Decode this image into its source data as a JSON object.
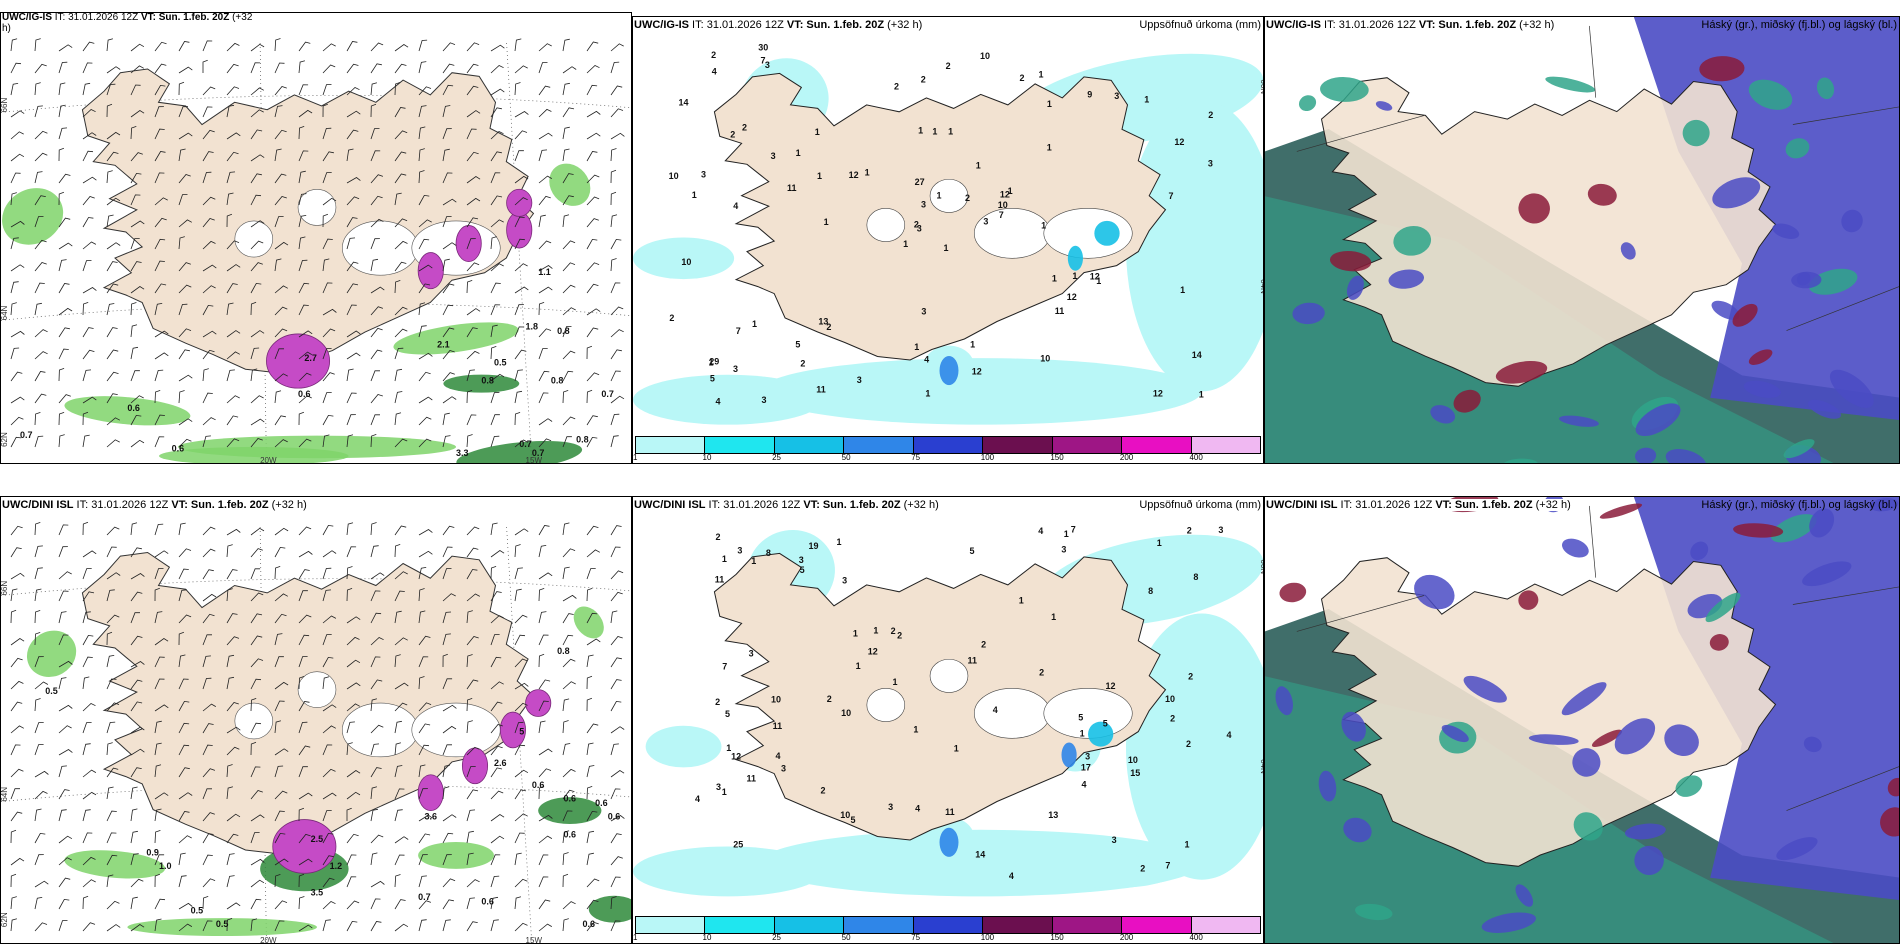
{
  "panels": {
    "top_wind": {
      "model": "UWC/IG-IS",
      "meta_pre": " IT: 31.01.2026 12Z ",
      "vt_label": "VT: Sun. 1.feb. 20Z",
      "lead": " (+32",
      "lead2": "h)",
      "lat_labels": [
        "66N",
        "64N",
        "62N"
      ],
      "lat_labels_right": [
        "66N",
        "64N"
      ],
      "lon_labels": [
        "20W",
        "15W"
      ],
      "values": [
        "0.7",
        "0.6",
        "0.6",
        "2.1",
        "0.8",
        "0.8",
        "1.8",
        "0.5",
        "0.8",
        "0.7",
        "3.3",
        "0.7",
        "0.7",
        "0.8",
        "2.7",
        "0.6",
        "1.1"
      ]
    },
    "top_precip": {
      "model": "UWC/IG-IS",
      "meta_pre": " IT: 31.01.2026 12Z ",
      "vt_label": "VT: Sun. 1.feb. 20Z",
      "lead": " (+32 h)",
      "title_right": "Uppsöfnuð úrkoma (mm)",
      "values": [
        "1",
        "2",
        "3",
        "29",
        "12",
        "2",
        "1",
        "1",
        "1",
        "3",
        "3",
        "1",
        "4",
        "2",
        "1",
        "1",
        "3",
        "1",
        "1",
        "1",
        "1",
        "5",
        "2",
        "1",
        "1",
        "1",
        "2",
        "2",
        "1",
        "1",
        "3",
        "2",
        "1",
        "3",
        "1",
        "9",
        "13",
        "12",
        "14",
        "12",
        "10",
        "12",
        "11",
        "11",
        "11",
        "10",
        "10",
        "4",
        "4",
        "7",
        "7",
        "12",
        "14",
        "12",
        "10",
        "5",
        "7",
        "2",
        "1",
        "1",
        "2",
        "1",
        "3",
        "1",
        "3",
        "30",
        "2",
        "2",
        "1",
        "2",
        "3",
        "3",
        "1",
        "1",
        "1",
        "4",
        "3",
        "10",
        "27",
        "12",
        "2",
        "3",
        "1",
        "1",
        "1",
        "7"
      ],
      "lon_labels": [
        "66N",
        "64N"
      ]
    },
    "top_cloud": {
      "model": "UWC/IG-IS",
      "meta_pre": " IT: 31.01.2026 12Z ",
      "vt_label": "VT: Sun. 1.feb. 20Z",
      "lead": " (+32 h)",
      "title_right": "Háský (gr.), miðský (fj.bl.) og lágský (bl.)"
    },
    "bot_wind": {
      "model": "UWC/DINI ISL",
      "meta_pre": " IT: 31.01.2026 12Z ",
      "vt_label": "VT: Sun. 1.feb. 20Z",
      "lead": " (+32 h)",
      "lat_labels": [
        "66N",
        "64N",
        "62N"
      ],
      "lon_labels": [
        "20W",
        "15W"
      ],
      "values": [
        "0.5",
        "0.9",
        "1.0",
        "2.5",
        "1.2",
        "3.5",
        "0.7",
        "0.6",
        "0.6",
        "0.6",
        "0.6",
        "0.6",
        "0.5",
        "0.5",
        "0.6",
        "0.6",
        "3.6",
        "5",
        "2.6",
        "0.8"
      ]
    },
    "bot_precip": {
      "model": "UWC/DINI ISL",
      "meta_pre": " IT: 31.01.2026 12Z ",
      "vt_label": "VT: Sun. 1.feb. 20Z",
      "lead": " (+32 h)",
      "title_right": "Uppsöfnuð úrkoma (mm)",
      "values": [
        "1",
        "2",
        "25",
        "19",
        "2",
        "3",
        "1",
        "3",
        "1",
        "4",
        "11",
        "2",
        "1",
        "1",
        "3",
        "2",
        "1",
        "4",
        "2",
        "3",
        "3",
        "1",
        "1",
        "2",
        "4",
        "3",
        "3",
        "5",
        "5",
        "12",
        "14",
        "13",
        "12",
        "10",
        "10",
        "15",
        "17",
        "10",
        "11",
        "11",
        "8",
        "7",
        "7",
        "4",
        "10",
        "2",
        "4",
        "3",
        "2",
        "7",
        "4",
        "1",
        "2",
        "5",
        "4",
        "2",
        "1",
        "2",
        "11",
        "8",
        "5",
        "3",
        "2",
        "1",
        "5",
        "3",
        "1",
        "4",
        "2",
        "3",
        "1",
        "1",
        "1",
        "1",
        "11",
        "1",
        "12",
        "10",
        "5",
        "8"
      ],
      "lon_labels": [
        "66N",
        "64N"
      ]
    },
    "bot_cloud": {
      "model": "UWC/DINI ISL",
      "meta_pre": " IT: 31.01.2026 12Z ",
      "vt_label": "VT: Sun. 1.feb. 20Z",
      "lead": " (+32 h)",
      "title_right": "Háský (gr.), miðský (fj.bl.) og lágský (bl.)"
    }
  },
  "precip_legend": {
    "ticks": [
      "1",
      "10",
      "25",
      "50",
      "75",
      "100",
      "150",
      "200",
      "400"
    ],
    "colors": [
      "#b9f7f7",
      "#1fe6ef",
      "#16c0e6",
      "#2f86e8",
      "#2a3fd0",
      "#6b0f4f",
      "#9e1685",
      "#e80fc2",
      "#f0b8f2"
    ]
  },
  "colors": {
    "land": "#f2e2d1",
    "sea": "#ffffff",
    "precip_light": "#b9f7f7",
    "wind_green": "#7fd46a",
    "dark_green": "#2e8a3a",
    "magenta": "#c54bc6",
    "cloud_blue": "#4a4bc4",
    "cloud_green": "#2fa58a",
    "cloud_red": "#8a1b3a",
    "cloud_dark": "#2b5e5a"
  }
}
